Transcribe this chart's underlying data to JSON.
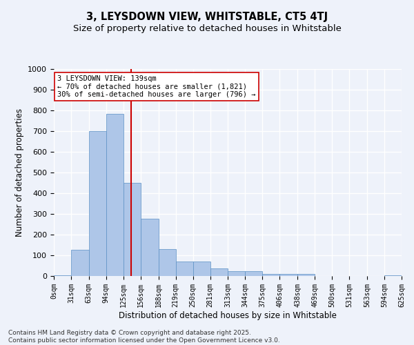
{
  "title1": "3, LEYSDOWN VIEW, WHITSTABLE, CT5 4TJ",
  "title2": "Size of property relative to detached houses in Whitstable",
  "xlabel": "Distribution of detached houses by size in Whitstable",
  "ylabel": "Number of detached properties",
  "bin_edges": [
    0,
    31,
    63,
    94,
    125,
    156,
    188,
    219,
    250,
    281,
    313,
    344,
    375,
    406,
    438,
    469,
    500,
    531,
    563,
    594,
    625
  ],
  "bar_heights": [
    5,
    128,
    700,
    785,
    450,
    278,
    130,
    70,
    70,
    38,
    22,
    22,
    10,
    10,
    10,
    0,
    0,
    0,
    0,
    5
  ],
  "bar_color": "#aec6e8",
  "bar_edgecolor": "#5a8fc4",
  "vline_x": 139,
  "vline_color": "#cc0000",
  "annotation_text": "3 LEYSDOWN VIEW: 139sqm\n← 70% of detached houses are smaller (1,821)\n30% of semi-detached houses are larger (796) →",
  "box_facecolor": "white",
  "box_edgecolor": "#cc0000",
  "ylim": [
    0,
    1000
  ],
  "yticks": [
    0,
    100,
    200,
    300,
    400,
    500,
    600,
    700,
    800,
    900,
    1000
  ],
  "tick_labels": [
    "0sqm",
    "31sqm",
    "63sqm",
    "94sqm",
    "125sqm",
    "156sqm",
    "188sqm",
    "219sqm",
    "250sqm",
    "281sqm",
    "313sqm",
    "344sqm",
    "375sqm",
    "406sqm",
    "438sqm",
    "469sqm",
    "500sqm",
    "531sqm",
    "563sqm",
    "594sqm",
    "625sqm"
  ],
  "footer": "Contains HM Land Registry data © Crown copyright and database right 2025.\nContains public sector information licensed under the Open Government Licence v3.0.",
  "bg_color": "#eef2fa",
  "grid_color": "white",
  "title_fontsize": 10.5,
  "subtitle_fontsize": 9.5,
  "annot_fontsize": 7.5,
  "tick_fontsize": 7,
  "ylabel_fontsize": 8.5,
  "xlabel_fontsize": 8.5,
  "footer_fontsize": 6.5
}
